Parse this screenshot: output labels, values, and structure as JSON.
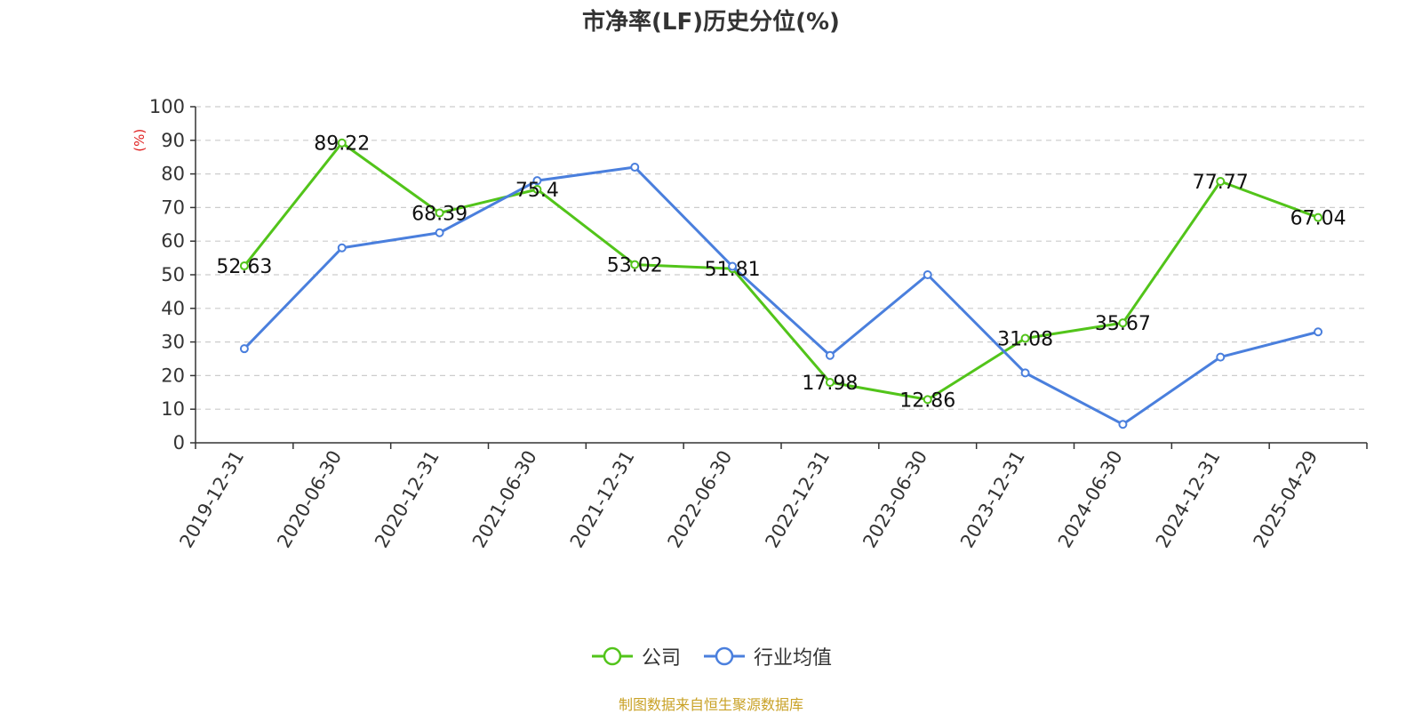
{
  "chart_data": {
    "type": "line",
    "title": "市净率(LF)历史分位(%)",
    "ylabel": "(%)",
    "xlabel": "",
    "ylim": [
      0,
      100
    ],
    "yticks": [
      0,
      10,
      20,
      30,
      40,
      50,
      60,
      70,
      80,
      90,
      100
    ],
    "categories": [
      "2019-12-31",
      "2020-06-30",
      "2020-12-31",
      "2021-06-30",
      "2021-12-31",
      "2022-06-30",
      "2022-12-31",
      "2023-06-30",
      "2023-12-31",
      "2024-06-30",
      "2024-12-31",
      "2025-04-29"
    ],
    "grid": true,
    "legend_position": "bottom",
    "series": [
      {
        "name": "公司",
        "color": "#52c41a",
        "show_labels": true,
        "values": [
          52.63,
          89.22,
          68.39,
          75.4,
          53.02,
          51.81,
          17.98,
          12.86,
          31.08,
          35.67,
          77.77,
          67.04
        ],
        "labels": [
          "52.63",
          "89.22",
          "68.39",
          "75.4",
          "53.02",
          "51.81",
          "17.98",
          "12.86",
          "31.08",
          "35.67",
          "77.77",
          "67.04"
        ]
      },
      {
        "name": "行业均值",
        "color": "#4a7fdd",
        "show_labels": false,
        "values": [
          28.0,
          58.0,
          62.5,
          78.0,
          82.0,
          52.5,
          26.0,
          50.0,
          20.8,
          5.5,
          25.5,
          33.0
        ]
      }
    ]
  },
  "source_note": "制图数据来自恒生聚源数据库",
  "colors": {
    "source_note": "#c9a227",
    "axis_label": "#e02020"
  }
}
